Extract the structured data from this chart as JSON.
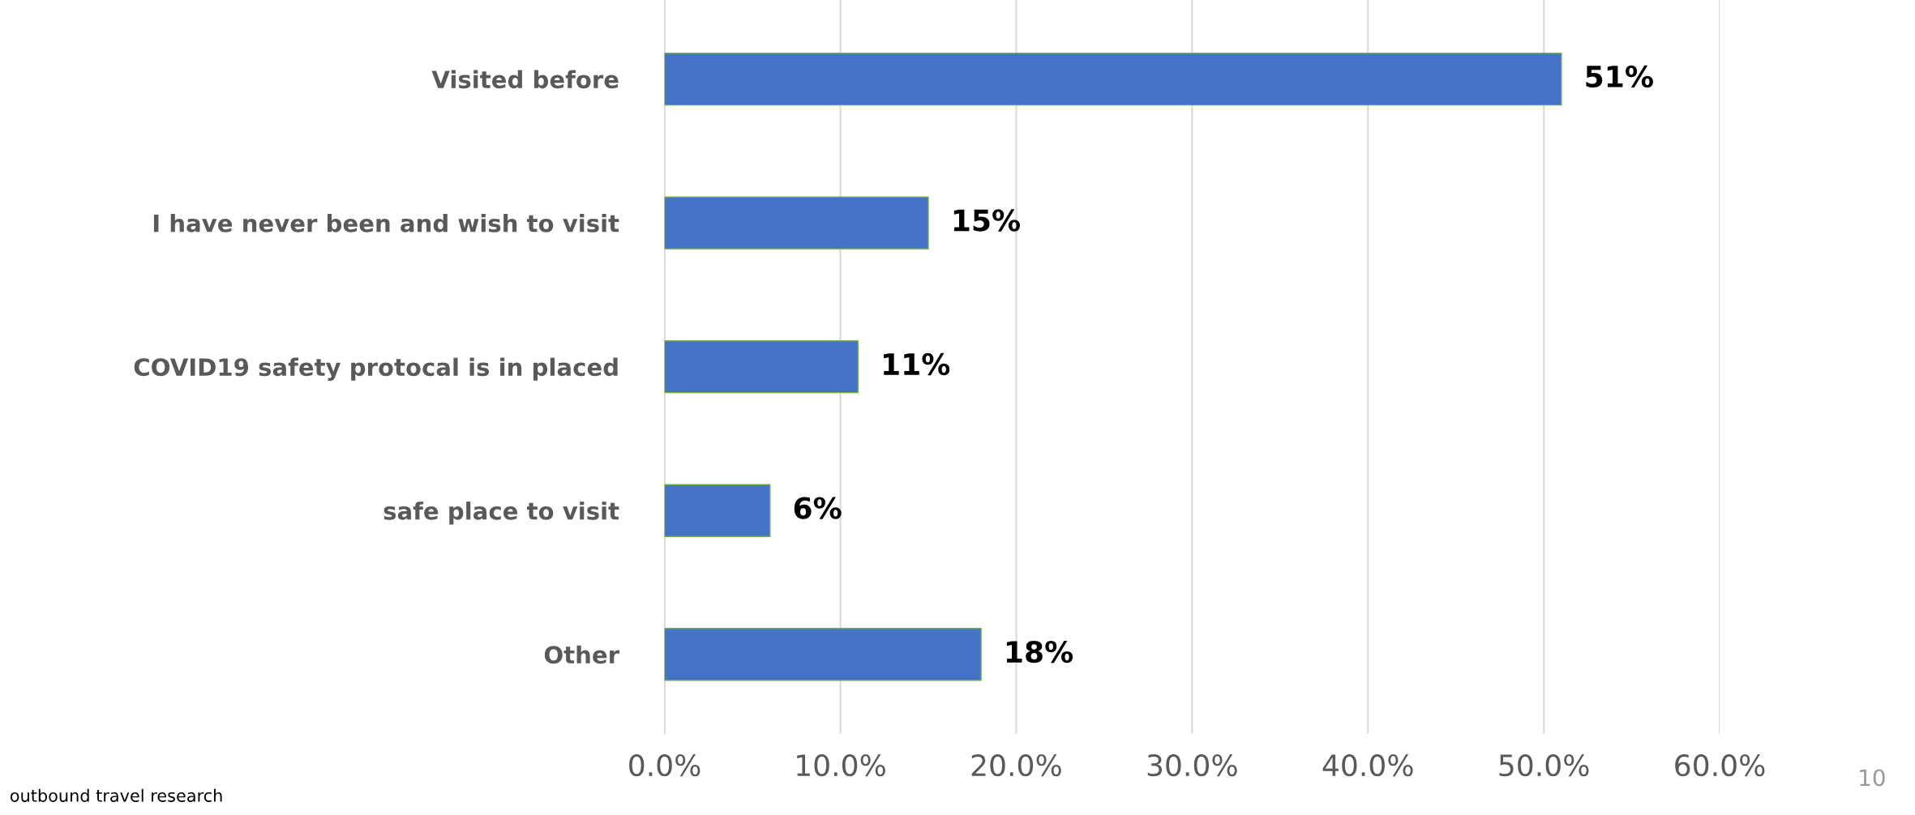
{
  "chart_data": {
    "type": "bar",
    "orientation": "horizontal",
    "categories": [
      "Visited before",
      "I have never been and wish to visit",
      "COVID19 safety protocal is in placed",
      "safe place to visit",
      "Other"
    ],
    "values": [
      51,
      15,
      11,
      6,
      18
    ],
    "value_labels": [
      "51%",
      "15%",
      "11%",
      "6%",
      "18%"
    ],
    "color": "#4472c4",
    "xlim": [
      0,
      60
    ],
    "xticks": [
      {
        "value": 0,
        "label": "0.0%"
      },
      {
        "value": 10,
        "label": "10.0%"
      },
      {
        "value": 20,
        "label": "20.0%"
      },
      {
        "value": 30,
        "label": "30.0%"
      },
      {
        "value": 40,
        "label": "40.0%"
      },
      {
        "value": 50,
        "label": "50.0%"
      },
      {
        "value": 60,
        "label": "60.0%"
      }
    ],
    "grid": "x",
    "annotations": [
      "outbound travel research",
      "10"
    ]
  }
}
